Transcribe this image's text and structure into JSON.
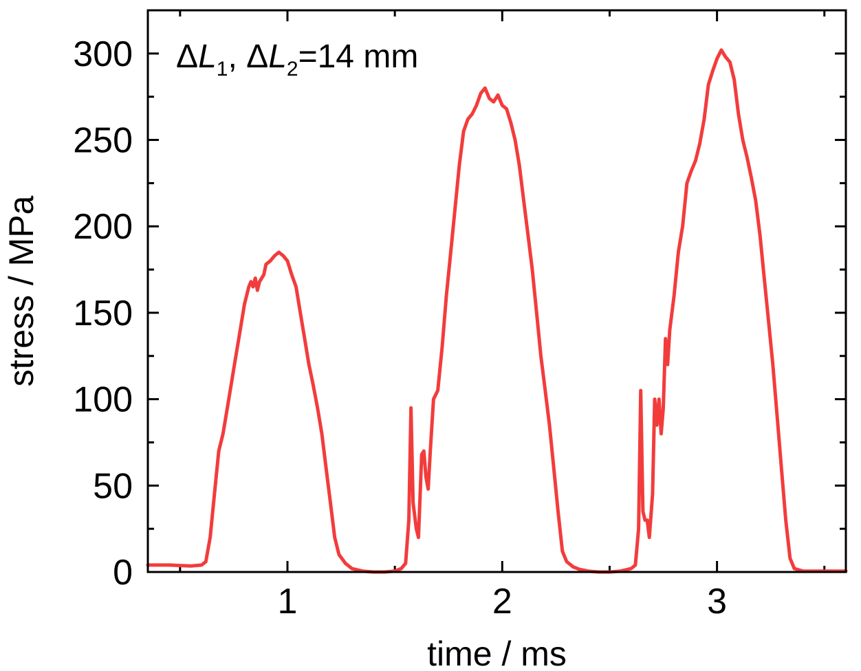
{
  "chart_data": {
    "type": "line",
    "title": "",
    "xlabel": "time / ms",
    "ylabel": "stress / MPa",
    "xlim": [
      0.35,
      3.6
    ],
    "ylim": [
      0,
      325
    ],
    "x_ticks": [
      1,
      2,
      3
    ],
    "x_tick_labels": [
      "1",
      "2",
      "3"
    ],
    "y_ticks": [
      0,
      50,
      100,
      150,
      200,
      250,
      300
    ],
    "y_tick_labels": [
      "0",
      "50",
      "100",
      "150",
      "200",
      "250",
      "300"
    ],
    "grid": false,
    "legend": "none",
    "annotation": {
      "delta": "Δ",
      "var1": "L",
      "sub1": "1",
      "sep": ", ",
      "var2": "L",
      "sub2": "2",
      "rest": "=14 mm"
    },
    "series": [
      {
        "color": "#f23c3c",
        "points": [
          [
            0.35,
            4
          ],
          [
            0.45,
            4
          ],
          [
            0.55,
            3.5
          ],
          [
            0.6,
            4
          ],
          [
            0.62,
            6
          ],
          [
            0.64,
            20
          ],
          [
            0.66,
            45
          ],
          [
            0.68,
            70
          ],
          [
            0.7,
            80
          ],
          [
            0.72,
            95
          ],
          [
            0.74,
            110
          ],
          [
            0.76,
            125
          ],
          [
            0.78,
            140
          ],
          [
            0.8,
            155
          ],
          [
            0.82,
            165
          ],
          [
            0.83,
            168
          ],
          [
            0.84,
            165
          ],
          [
            0.85,
            170
          ],
          [
            0.86,
            163
          ],
          [
            0.87,
            168
          ],
          [
            0.89,
            172
          ],
          [
            0.9,
            178
          ],
          [
            0.92,
            180
          ],
          [
            0.94,
            183
          ],
          [
            0.96,
            185
          ],
          [
            0.98,
            183
          ],
          [
            1.0,
            180
          ],
          [
            1.02,
            172
          ],
          [
            1.04,
            165
          ],
          [
            1.06,
            150
          ],
          [
            1.08,
            135
          ],
          [
            1.1,
            120
          ],
          [
            1.12,
            108
          ],
          [
            1.14,
            95
          ],
          [
            1.16,
            80
          ],
          [
            1.18,
            60
          ],
          [
            1.2,
            40
          ],
          [
            1.22,
            20
          ],
          [
            1.24,
            10
          ],
          [
            1.27,
            5
          ],
          [
            1.3,
            2
          ],
          [
            1.35,
            0.5
          ],
          [
            1.4,
            0
          ],
          [
            1.45,
            0
          ],
          [
            1.5,
            0.5
          ],
          [
            1.53,
            2
          ],
          [
            1.55,
            5
          ],
          [
            1.565,
            30
          ],
          [
            1.575,
            95
          ],
          [
            1.585,
            40
          ],
          [
            1.6,
            25
          ],
          [
            1.61,
            20
          ],
          [
            1.625,
            68
          ],
          [
            1.635,
            70
          ],
          [
            1.645,
            55
          ],
          [
            1.655,
            48
          ],
          [
            1.665,
            70
          ],
          [
            1.68,
            100
          ],
          [
            1.7,
            105
          ],
          [
            1.72,
            130
          ],
          [
            1.74,
            160
          ],
          [
            1.76,
            185
          ],
          [
            1.78,
            210
          ],
          [
            1.8,
            235
          ],
          [
            1.82,
            255
          ],
          [
            1.84,
            262
          ],
          [
            1.86,
            265
          ],
          [
            1.88,
            270
          ],
          [
            1.9,
            277
          ],
          [
            1.92,
            280
          ],
          [
            1.94,
            274
          ],
          [
            1.96,
            272
          ],
          [
            1.98,
            276
          ],
          [
            2.0,
            270
          ],
          [
            2.02,
            268
          ],
          [
            2.04,
            260
          ],
          [
            2.06,
            250
          ],
          [
            2.08,
            235
          ],
          [
            2.1,
            215
          ],
          [
            2.12,
            195
          ],
          [
            2.14,
            175
          ],
          [
            2.16,
            150
          ],
          [
            2.18,
            125
          ],
          [
            2.2,
            105
          ],
          [
            2.22,
            85
          ],
          [
            2.24,
            60
          ],
          [
            2.26,
            35
          ],
          [
            2.28,
            12
          ],
          [
            2.3,
            6
          ],
          [
            2.33,
            3
          ],
          [
            2.36,
            1.5
          ],
          [
            2.4,
            0.5
          ],
          [
            2.45,
            0
          ],
          [
            2.5,
            0
          ],
          [
            2.55,
            0.5
          ],
          [
            2.6,
            2
          ],
          [
            2.62,
            4
          ],
          [
            2.635,
            25
          ],
          [
            2.645,
            105
          ],
          [
            2.655,
            35
          ],
          [
            2.665,
            30
          ],
          [
            2.675,
            30
          ],
          [
            2.685,
            20
          ],
          [
            2.7,
            45
          ],
          [
            2.71,
            100
          ],
          [
            2.72,
            85
          ],
          [
            2.73,
            100
          ],
          [
            2.74,
            80
          ],
          [
            2.75,
            95
          ],
          [
            2.76,
            135
          ],
          [
            2.77,
            120
          ],
          [
            2.78,
            140
          ],
          [
            2.8,
            160
          ],
          [
            2.82,
            185
          ],
          [
            2.84,
            200
          ],
          [
            2.86,
            225
          ],
          [
            2.88,
            232
          ],
          [
            2.9,
            238
          ],
          [
            2.92,
            248
          ],
          [
            2.94,
            262
          ],
          [
            2.96,
            282
          ],
          [
            2.98,
            290
          ],
          [
            3.0,
            297
          ],
          [
            3.02,
            302
          ],
          [
            3.04,
            298
          ],
          [
            3.06,
            295
          ],
          [
            3.08,
            285
          ],
          [
            3.1,
            265
          ],
          [
            3.12,
            250
          ],
          [
            3.14,
            240
          ],
          [
            3.16,
            228
          ],
          [
            3.18,
            215
          ],
          [
            3.2,
            195
          ],
          [
            3.22,
            170
          ],
          [
            3.24,
            145
          ],
          [
            3.26,
            120
          ],
          [
            3.28,
            90
          ],
          [
            3.3,
            60
          ],
          [
            3.32,
            30
          ],
          [
            3.34,
            8
          ],
          [
            3.36,
            2
          ],
          [
            3.4,
            0.5
          ],
          [
            3.5,
            0.5
          ],
          [
            3.6,
            0.5
          ]
        ]
      }
    ]
  }
}
